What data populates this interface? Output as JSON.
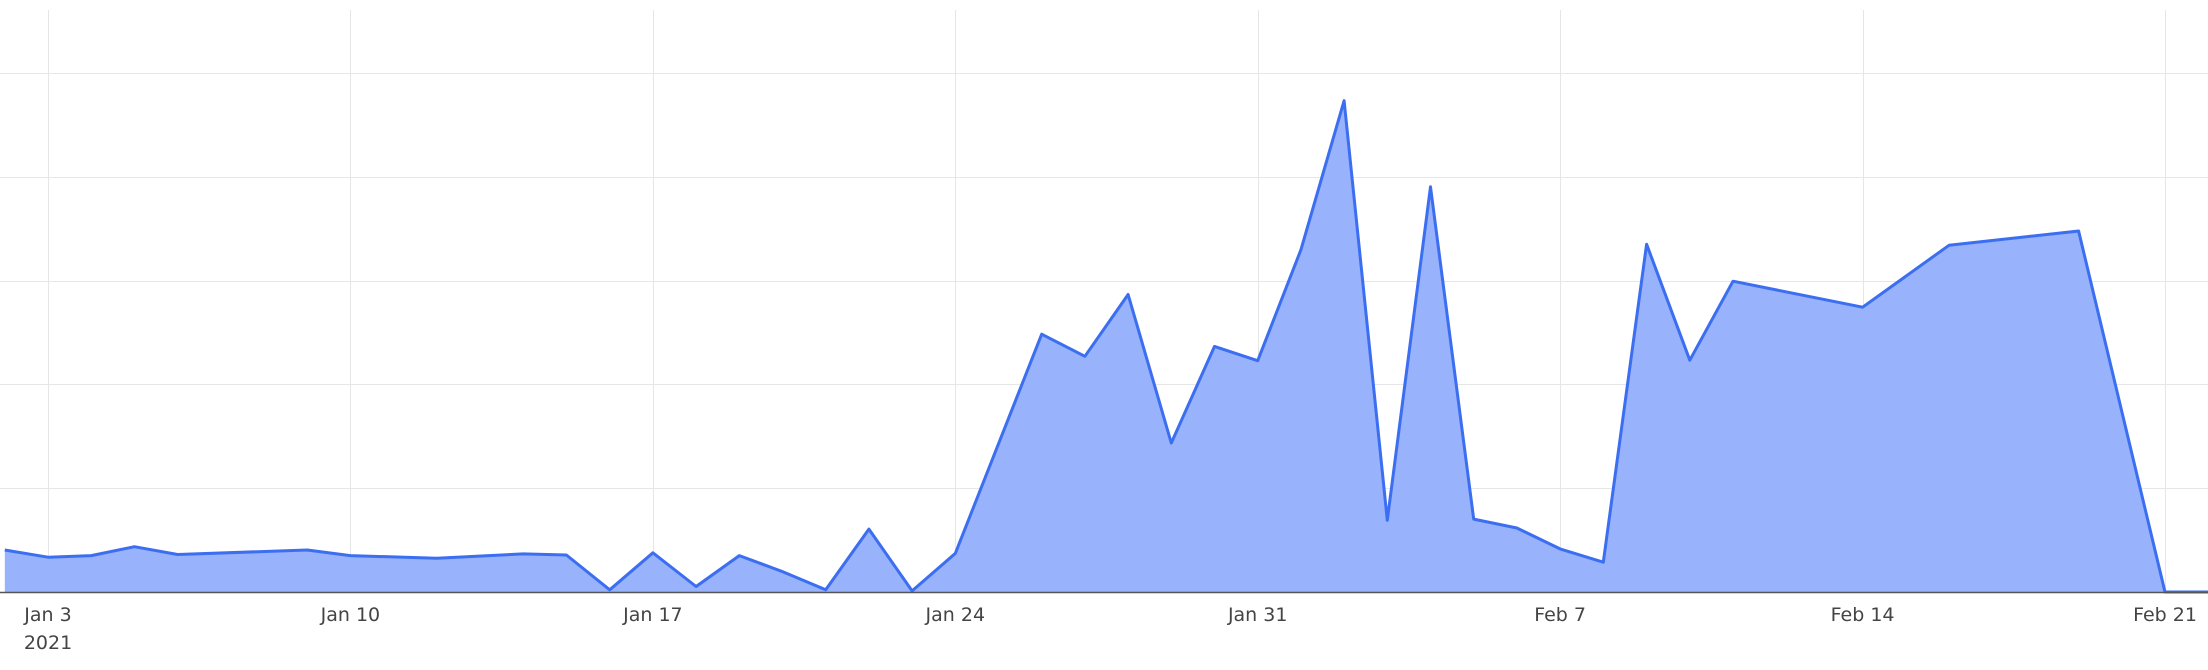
{
  "chart_data": {
    "type": "area",
    "title": "",
    "xlabel": "",
    "ylabel": "",
    "x_axis": {
      "type": "date",
      "range": [
        "2021-01-01",
        "2021-02-22"
      ],
      "ticks": [
        {
          "date": "2021-01-03",
          "label": "Jan 3"
        },
        {
          "date": "2021-01-10",
          "label": "Jan 10"
        },
        {
          "date": "2021-01-17",
          "label": "Jan 17"
        },
        {
          "date": "2021-01-24",
          "label": "Jan 24"
        },
        {
          "date": "2021-01-31",
          "label": "Jan 31"
        },
        {
          "date": "2021-02-07",
          "label": "Feb 7"
        },
        {
          "date": "2021-02-14",
          "label": "Feb 14"
        },
        {
          "date": "2021-02-21",
          "label": "Feb 21"
        }
      ],
      "year_label": "2021"
    },
    "y_axis": {
      "ylim": [
        0,
        100
      ],
      "gridlines": [
        20,
        40,
        60,
        80,
        100
      ],
      "tick_labels_shown": false
    },
    "grid": true,
    "colors": {
      "line": "#3b6ef0",
      "fill": "#98b2fb",
      "grid": "#e6e6e6",
      "axis": "#555555"
    },
    "series": [
      {
        "x": [
          "2021-01-02",
          "2021-01-03",
          "2021-01-04",
          "2021-01-05",
          "2021-01-06",
          "2021-01-09",
          "2021-01-10",
          "2021-01-12",
          "2021-01-14",
          "2021-01-15",
          "2021-01-16",
          "2021-01-17",
          "2021-01-18",
          "2021-01-19",
          "2021-01-20",
          "2021-01-21",
          "2021-01-22",
          "2021-01-23",
          "2021-01-24",
          "2021-01-26",
          "2021-01-27",
          "2021-01-28",
          "2021-01-29",
          "2021-01-30",
          "2021-01-31",
          "2021-02-01",
          "2021-02-02",
          "2021-02-03",
          "2021-02-04",
          "2021-02-05",
          "2021-02-06",
          "2021-02-07",
          "2021-02-08",
          "2021-02-09",
          "2021-02-10",
          "2021-02-11",
          "2021-02-14",
          "2021-02-16",
          "2021-02-19",
          "2021-02-21",
          "2021-02-22"
        ],
        "values": [
          7.6,
          6.3,
          6.6,
          8.2,
          6.8,
          7.6,
          6.6,
          6.1,
          6.9,
          6.7,
          0.4,
          7.1,
          1.0,
          6.6,
          3.7,
          0.4,
          11.4,
          0.2,
          7.0,
          46.7,
          42.7,
          53.9,
          27.0,
          44.5,
          41.9,
          62.0,
          89.0,
          13.0,
          73.4,
          13.2,
          11.6,
          7.8,
          5.4,
          63.0,
          42.0,
          56.3,
          51.6,
          62.8,
          65.4,
          0.0,
          0.0
        ]
      }
    ]
  }
}
